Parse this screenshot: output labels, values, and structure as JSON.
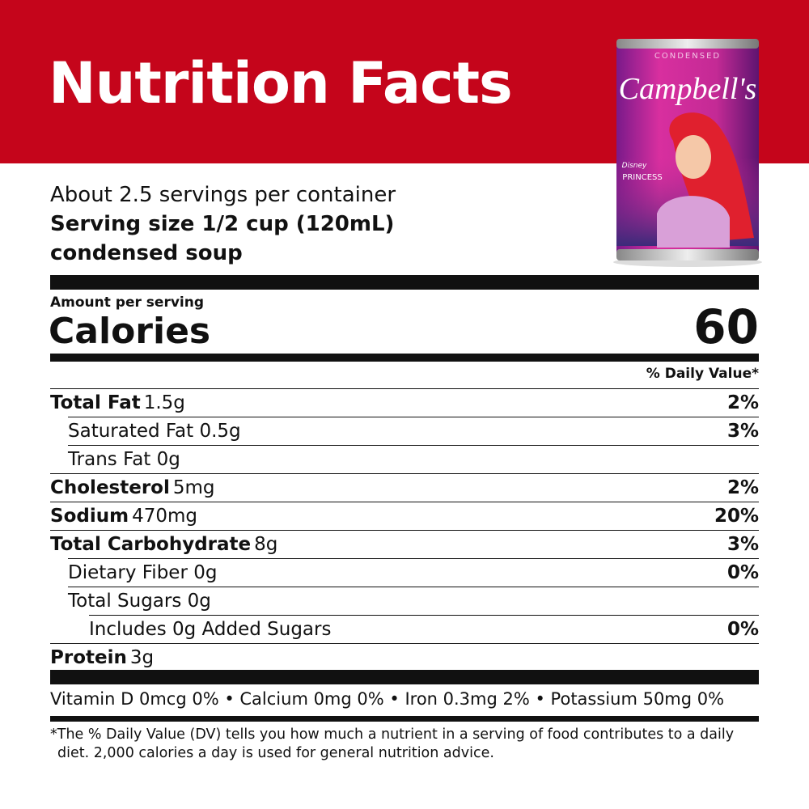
{
  "header": {
    "title": "Nutrition Facts"
  },
  "product": {
    "tag": "CONDENSED",
    "brand": "Campbell's",
    "line": "Disney",
    "sub": "PRINCESS"
  },
  "serving": {
    "per_container": "About 2.5 servings per container",
    "size": "Serving size 1/2 cup (120mL)",
    "form": "condensed soup"
  },
  "calories": {
    "heading": "Amount per serving",
    "label": "Calories",
    "value": "60"
  },
  "dv_header": "% Daily Value*",
  "nutrients": [
    {
      "name": "Total Fat",
      "amount": "1.5g",
      "dv": "2%"
    },
    {
      "name": "Saturated Fat 0.5g",
      "dv": "3%"
    },
    {
      "name": "Trans Fat 0g"
    },
    {
      "name": "Cholesterol",
      "amount": "5mg",
      "dv": "2%"
    },
    {
      "name": "Sodium",
      "amount": "470mg",
      "dv": "20%"
    },
    {
      "name": "Total Carbohydrate",
      "amount": "8g",
      "dv": "3%"
    },
    {
      "name": "Dietary Fiber 0g",
      "dv": "0%"
    },
    {
      "name": "Total Sugars 0g"
    },
    {
      "name": "Includes 0g Added Sugars",
      "dv": "0%"
    },
    {
      "name": "Protein",
      "amount": "3g"
    }
  ],
  "vitamins": "Vitamin D 0mcg 0% • Calcium 0mg 0% • Iron 0.3mg 2% • Potassium 50mg 0%",
  "footnote": "*The % Daily Value (DV) tells you how much a nutrient in a serving of food contributes to a daily diet. 2,000 calories a day is used for general nutrition advice."
}
